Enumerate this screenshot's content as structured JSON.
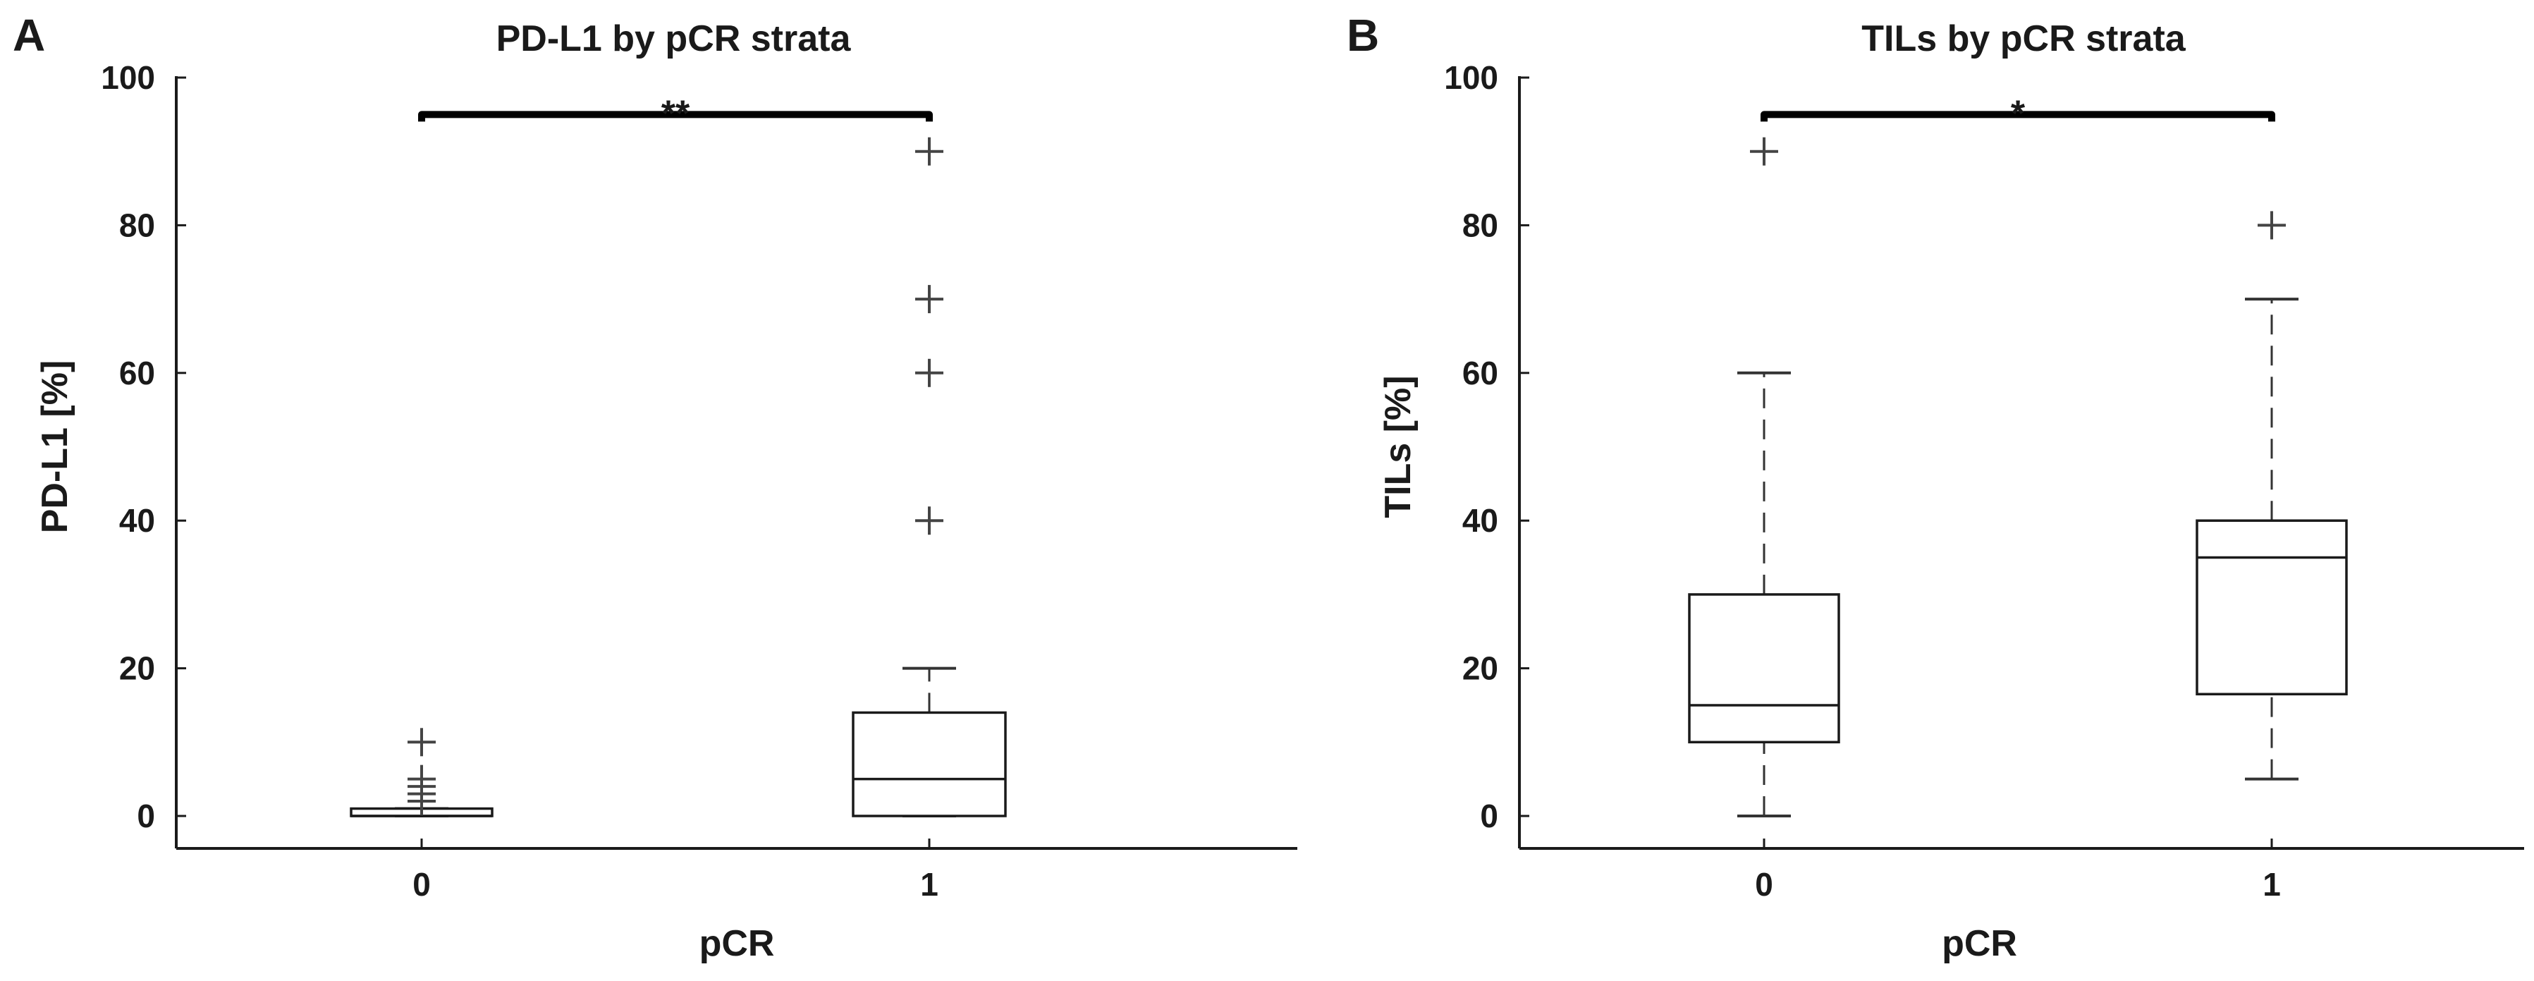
{
  "chart_data": [
    {
      "type": "box",
      "panel_letter": "A",
      "title": "PD-L1 by pCR strata",
      "xlabel": "pCR",
      "ylabel": "PD-L1 [%]",
      "ylim": [
        -5,
        100
      ],
      "yticks": [
        0,
        20,
        40,
        60,
        80,
        100
      ],
      "categories": [
        "0",
        "1"
      ],
      "boxes": [
        {
          "category": "0",
          "whisker_low": 0,
          "q1": 0,
          "median": 0,
          "q3": 1,
          "whisker_high": 1,
          "outliers": [
            2,
            3,
            4,
            5,
            10
          ]
        },
        {
          "category": "1",
          "whisker_low": 0,
          "q1": 0,
          "median": 5,
          "q3": 14,
          "whisker_high": 20,
          "outliers": [
            40,
            60,
            70,
            90
          ]
        }
      ],
      "significance": {
        "label": "**",
        "between": [
          "0",
          "1"
        ],
        "y": 95
      },
      "grid": false,
      "legend": "none"
    },
    {
      "type": "box",
      "panel_letter": "B",
      "title": "TILs by pCR strata",
      "xlabel": "pCR",
      "ylabel": "TILs [%]",
      "ylim": [
        -5,
        100
      ],
      "yticks": [
        0,
        20,
        40,
        60,
        80,
        100
      ],
      "categories": [
        "0",
        "1"
      ],
      "boxes": [
        {
          "category": "0",
          "whisker_low": 0,
          "q1": 10,
          "median": 15,
          "q3": 30,
          "whisker_high": 60,
          "outliers": [
            90
          ]
        },
        {
          "category": "1",
          "whisker_low": 5,
          "q1": 16.5,
          "median": 35,
          "q3": 40,
          "whisker_high": 70,
          "outliers": [
            80
          ]
        }
      ],
      "significance": {
        "label": "*",
        "between": [
          "0",
          "1"
        ],
        "y": 95
      },
      "grid": false,
      "legend": "none"
    }
  ]
}
